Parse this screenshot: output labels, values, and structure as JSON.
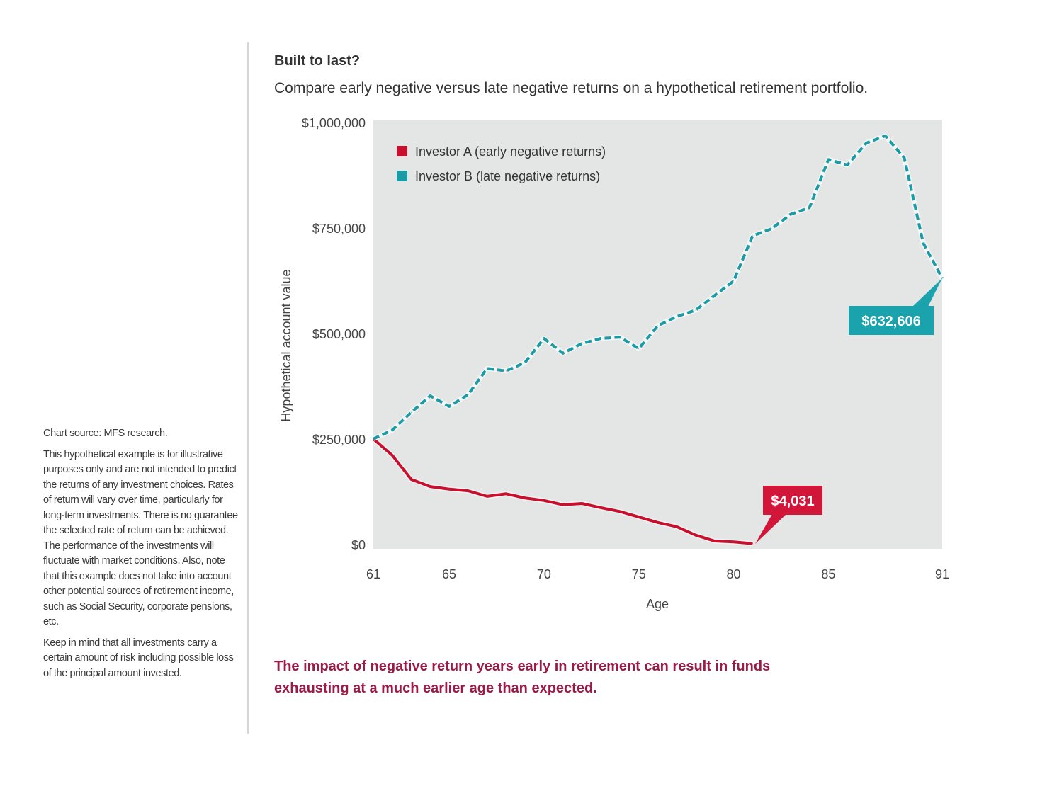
{
  "title": "Built to last?",
  "subtitle": "Compare early negative versus late negative returns on a hypothetical retirement portfolio.",
  "notes": {
    "source": "Chart source: MFS research.",
    "disclaimer": "This hypothetical example is for illustrative purposes only and are not intended to predict the returns of any investment choices. Rates of return will vary over time, particularly for long-term investments. There is no guarantee the selected rate of return can be achieved. The performance of the investments will fluctuate with market conditions. Also, note that this example does not take into account other potential sources of retirement income, such as Social Security, corporate pensions, etc.",
    "risk": "Keep in mind that all investments carry a certain amount of risk including possible loss of the principal amount invested."
  },
  "takeaway": "The impact of negative return years early in retirement can result in funds exhausting at a much earlier age than expected.",
  "colors": {
    "investor_a": "#c8102e",
    "investor_b": "#1a9ba6",
    "plot_bg": "#e4e5e5",
    "takeaway": "#9b1a47"
  },
  "chart_data": {
    "type": "line",
    "xlabel": "Age",
    "ylabel": "Hypothetical account value",
    "xlim": [
      61,
      91
    ],
    "ylim": [
      0,
      1000000
    ],
    "x_ticks": [
      61,
      65,
      70,
      75,
      80,
      85,
      91
    ],
    "x_tick_labels": [
      "61",
      "65",
      "70",
      "75",
      "80",
      "85",
      "91"
    ],
    "y_ticks": [
      0,
      250000,
      500000,
      750000,
      1000000
    ],
    "y_tick_labels": [
      "$0",
      "$250,000",
      "$500,000",
      "$750,000",
      "$1,000,000"
    ],
    "legend_position": "top-left",
    "grid": false,
    "series": [
      {
        "name": "Investor A (early negative returns)",
        "style": "solid",
        "x": [
          61,
          62,
          63,
          64,
          65,
          66,
          67,
          68,
          69,
          70,
          71,
          72,
          73,
          74,
          75,
          76,
          77,
          78,
          79,
          80,
          81
        ],
        "values": [
          252000,
          213000,
          156000,
          139000,
          133000,
          129000,
          116000,
          122000,
          112000,
          106000,
          96000,
          99000,
          89000,
          80000,
          67000,
          54000,
          44000,
          24000,
          10000,
          8000,
          4031
        ],
        "end_label": "$4,031"
      },
      {
        "name": "Investor B (late negative returns)",
        "style": "dashed",
        "x": [
          61,
          62,
          63,
          64,
          65,
          66,
          67,
          68,
          69,
          70,
          71,
          72,
          73,
          74,
          75,
          76,
          77,
          78,
          79,
          80,
          81,
          82,
          83,
          84,
          85,
          86,
          87,
          88,
          89,
          90,
          91
        ],
        "values": [
          252000,
          273000,
          315000,
          354000,
          329000,
          357000,
          419000,
          413000,
          433000,
          490000,
          455000,
          478000,
          490000,
          493000,
          466000,
          520000,
          542000,
          557000,
          592000,
          626000,
          733000,
          750000,
          784000,
          800000,
          914000,
          901000,
          953000,
          970000,
          918000,
          716000,
          632606
        ],
        "end_label": "$632,606"
      }
    ]
  }
}
